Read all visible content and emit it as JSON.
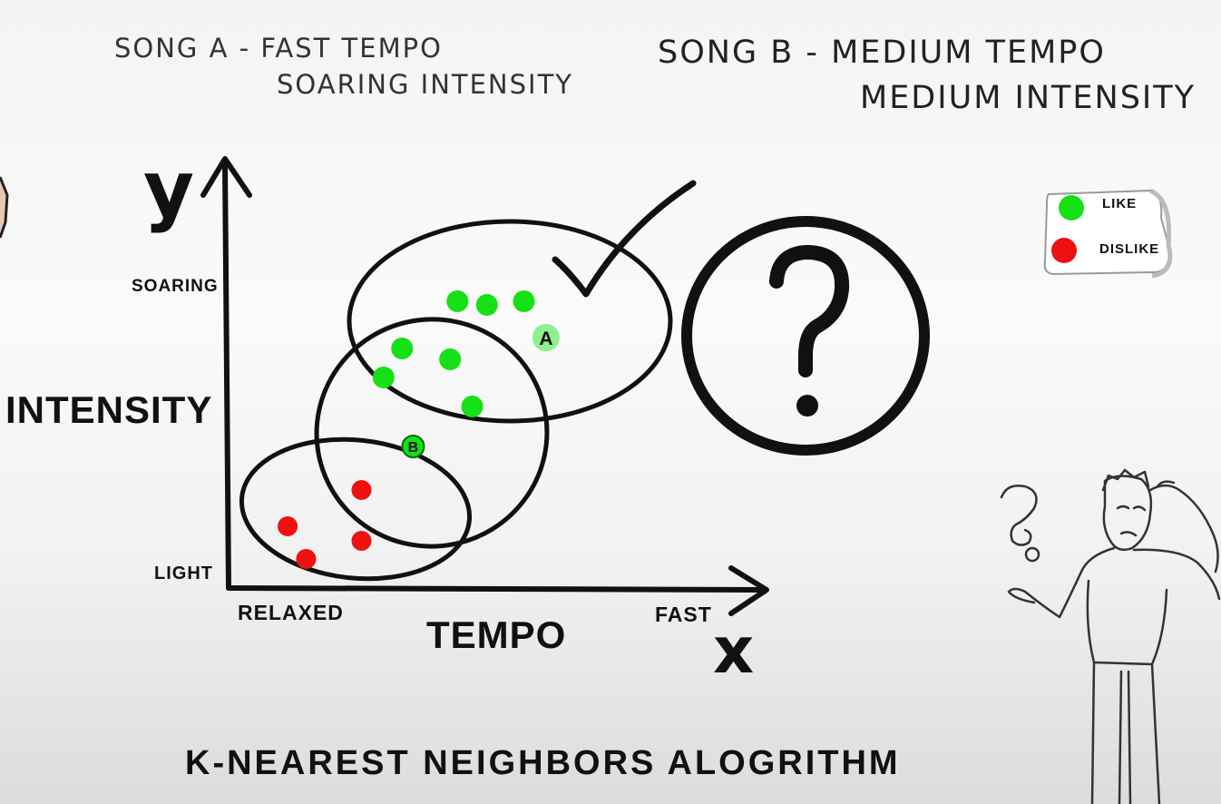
{
  "header": {
    "song_a_line1": "SONG A - FAST TEMPO",
    "song_a_line2": "SOARING INTENSITY",
    "song_b_line1": "SONG B - MEDIUM TEMPO",
    "song_b_line2": "MEDIUM INTENSITY"
  },
  "axes": {
    "y_symbol": "y",
    "x_symbol": "x",
    "y_title": "INTENSITY",
    "x_title": "TEMPO",
    "y_top": "SOARING",
    "y_bottom": "LIGHT",
    "x_left": "RELAXED",
    "x_right": "FAST"
  },
  "legend": [
    {
      "label": "LIKE",
      "color": "#16e016"
    },
    {
      "label": "DISLIKE",
      "color": "#ee1111"
    }
  ],
  "points": {
    "like": [
      {
        "x": 6.2,
        "y": 7.9
      },
      {
        "x": 7.0,
        "y": 7.8
      },
      {
        "x": 8.0,
        "y": 7.9
      },
      {
        "x": 4.7,
        "y": 6.6
      },
      {
        "x": 6.0,
        "y": 6.3
      },
      {
        "x": 4.2,
        "y": 5.8
      },
      {
        "x": 6.6,
        "y": 5.0
      }
    ],
    "dislike": [
      {
        "x": 3.6,
        "y": 2.7
      },
      {
        "x": 1.6,
        "y": 1.7
      },
      {
        "x": 3.6,
        "y": 1.3
      },
      {
        "x": 2.1,
        "y": 0.8
      }
    ],
    "queries": [
      {
        "label": "A",
        "x": 8.6,
        "y": 6.9
      },
      {
        "label": "B",
        "x": 5.0,
        "y": 3.9
      }
    ]
  },
  "colors": {
    "like": "#16e016",
    "dislike": "#ee1111",
    "query": "#8ef08e",
    "ink": "#111111"
  },
  "icons": {
    "checkmark": "check-icon",
    "question": "question-circle-icon",
    "person": "confused-person-illustration"
  },
  "footer": {
    "title": "K-NEAREST NEIGHBORS ALOGRITHM"
  }
}
